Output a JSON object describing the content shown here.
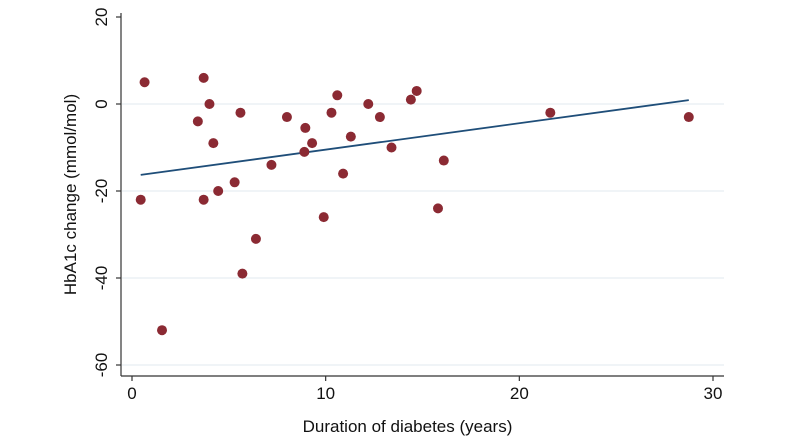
{
  "chart_data": {
    "type": "scatter",
    "title": "",
    "xlabel": "Duration of diabetes (years)",
    "ylabel": "HbA1c change (mmol/mol)",
    "xlim": [
      0,
      30
    ],
    "ylim": [
      -60,
      20
    ],
    "xticks": [
      0,
      10,
      20,
      30
    ],
    "yticks": [
      -60,
      -40,
      -20,
      0,
      20
    ],
    "xtick_labels": [
      "0",
      "10",
      "20",
      "30"
    ],
    "ytick_labels": [
      "-60",
      "-40",
      "-20",
      "0",
      "20"
    ],
    "grid": "horizontal",
    "gridlines_at": [
      -60,
      -40,
      -20,
      0
    ],
    "legend": "none",
    "series": [
      {
        "name": "observations",
        "type": "scatter",
        "color": "#8b2a33",
        "points": [
          {
            "x": 0.45,
            "y": -22
          },
          {
            "x": 0.65,
            "y": 5
          },
          {
            "x": 1.55,
            "y": -52
          },
          {
            "x": 3.4,
            "y": -4
          },
          {
            "x": 3.7,
            "y": 6
          },
          {
            "x": 3.7,
            "y": -22
          },
          {
            "x": 4.0,
            "y": 0
          },
          {
            "x": 4.2,
            "y": -9
          },
          {
            "x": 4.45,
            "y": -20
          },
          {
            "x": 5.3,
            "y": -18
          },
          {
            "x": 5.6,
            "y": -2
          },
          {
            "x": 5.7,
            "y": -39
          },
          {
            "x": 6.4,
            "y": -31
          },
          {
            "x": 7.2,
            "y": -14
          },
          {
            "x": 8.0,
            "y": -3
          },
          {
            "x": 8.9,
            "y": -11
          },
          {
            "x": 8.95,
            "y": -5.5
          },
          {
            "x": 9.3,
            "y": -9
          },
          {
            "x": 9.9,
            "y": -26
          },
          {
            "x": 10.3,
            "y": -2
          },
          {
            "x": 10.6,
            "y": 2
          },
          {
            "x": 10.9,
            "y": -16
          },
          {
            "x": 11.3,
            "y": -7.5
          },
          {
            "x": 12.2,
            "y": 0
          },
          {
            "x": 12.8,
            "y": -3
          },
          {
            "x": 13.4,
            "y": -10
          },
          {
            "x": 14.4,
            "y": 1
          },
          {
            "x": 14.7,
            "y": 3
          },
          {
            "x": 15.8,
            "y": -24
          },
          {
            "x": 16.1,
            "y": -13
          },
          {
            "x": 21.6,
            "y": -2
          },
          {
            "x": 28.75,
            "y": -3
          }
        ]
      },
      {
        "name": "fitted line",
        "type": "line",
        "color": "#1f4e79",
        "points": [
          {
            "x": 0.45,
            "y": -16.3
          },
          {
            "x": 28.75,
            "y": 0.9
          }
        ]
      }
    ]
  },
  "colors": {
    "marker": "#8b2a33",
    "fit_line": "#1f4e79",
    "gridline": "#e6eef2",
    "axis": "#333333"
  }
}
